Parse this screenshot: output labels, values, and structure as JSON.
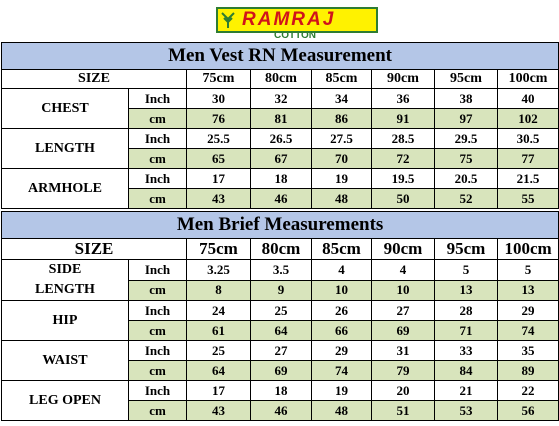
{
  "logo": {
    "brand": "RAMRAJ",
    "sub": "COTTON"
  },
  "tables": [
    {
      "title": "Men Vest RN Measurement",
      "size_label": "SIZE",
      "sizes": [
        "75cm",
        "80cm",
        "85cm",
        "90cm",
        "95cm",
        "100cm"
      ],
      "rows": [
        {
          "label": "CHEST",
          "units": [
            {
              "unit": "Inch",
              "values": [
                "30",
                "32",
                "34",
                "36",
                "38",
                "40"
              ]
            },
            {
              "unit": "cm",
              "values": [
                "76",
                "81",
                "86",
                "91",
                "97",
                "102"
              ]
            }
          ]
        },
        {
          "label": "LENGTH",
          "units": [
            {
              "unit": "Inch",
              "values": [
                "25.5",
                "26.5",
                "27.5",
                "28.5",
                "29.5",
                "30.5"
              ]
            },
            {
              "unit": "cm",
              "values": [
                "65",
                "67",
                "70",
                "72",
                "75",
                "77"
              ]
            }
          ]
        },
        {
          "label": "ARMHOLE",
          "units": [
            {
              "unit": "Inch",
              "values": [
                "17",
                "18",
                "19",
                "19.5",
                "20.5",
                "21.5"
              ]
            },
            {
              "unit": "cm",
              "values": [
                "43",
                "46",
                "48",
                "50",
                "52",
                "55"
              ]
            }
          ]
        }
      ]
    },
    {
      "title": "Men Brief Measurements",
      "size_label": "SIZE",
      "sizes": [
        "75cm",
        "80cm",
        "85cm",
        "90cm",
        "95cm",
        "100cm"
      ],
      "rows": [
        {
          "label": "SIDE LENGTH",
          "units": [
            {
              "unit": "Inch",
              "values": [
                "3.25",
                "3.5",
                "4",
                "4",
                "5",
                "5"
              ]
            },
            {
              "unit": "cm",
              "values": [
                "8",
                "9",
                "10",
                "10",
                "13",
                "13"
              ]
            }
          ]
        },
        {
          "label": "HIP",
          "units": [
            {
              "unit": "Inch",
              "values": [
                "24",
                "25",
                "26",
                "27",
                "28",
                "29"
              ]
            },
            {
              "unit": "cm",
              "values": [
                "61",
                "64",
                "66",
                "69",
                "71",
                "74"
              ]
            }
          ]
        },
        {
          "label": "WAIST",
          "units": [
            {
              "unit": "Inch",
              "values": [
                "25",
                "27",
                "29",
                "31",
                "33",
                "35"
              ]
            },
            {
              "unit": "cm",
              "values": [
                "64",
                "69",
                "74",
                "79",
                "84",
                "89"
              ]
            }
          ]
        },
        {
          "label": "LEG OPEN",
          "units": [
            {
              "unit": "Inch",
              "values": [
                "17",
                "18",
                "19",
                "20",
                "21",
                "22"
              ]
            },
            {
              "unit": "cm",
              "values": [
                "43",
                "46",
                "48",
                "51",
                "53",
                "56"
              ]
            }
          ]
        }
      ]
    }
  ]
}
